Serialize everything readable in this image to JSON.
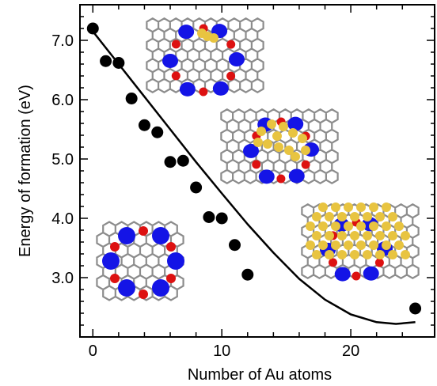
{
  "chart_data": {
    "type": "scatter",
    "title": "",
    "xlabel": "Number of Au atoms",
    "ylabel": "Energy of formation (eV)",
    "xlim": [
      -1,
      26.5
    ],
    "ylim": [
      2.0,
      7.6
    ],
    "xticks": [
      0,
      10,
      20
    ],
    "yticks": [
      3.0,
      4.0,
      5.0,
      6.0,
      7.0
    ],
    "x_tick_labels": [
      "0",
      "10",
      "20"
    ],
    "y_tick_labels": [
      "3.0",
      "4.0",
      "5.0",
      "6.0",
      "7.0"
    ],
    "grid": false,
    "legend": "none",
    "series": [
      {
        "type": "scatter",
        "x": [
          0,
          1,
          2,
          3,
          4,
          5,
          6,
          7,
          8,
          9,
          10,
          11,
          12,
          25
        ],
        "y": [
          7.2,
          6.65,
          6.62,
          6.02,
          5.57,
          5.45,
          4.95,
          4.97,
          4.52,
          4.02,
          4.0,
          3.55,
          3.05,
          2.48
        ],
        "color": "#000000"
      },
      {
        "type": "line",
        "x": [
          0,
          2,
          4,
          6,
          8,
          10,
          12,
          14,
          16,
          18,
          20,
          22,
          23.5,
          25
        ],
        "y": [
          7.15,
          6.6,
          6.05,
          5.5,
          4.95,
          4.42,
          3.9,
          3.42,
          2.98,
          2.63,
          2.38,
          2.25,
          2.22,
          2.25
        ],
        "color": "#000000"
      }
    ],
    "insets": [
      {
        "name": "pristine-vacancy-inset",
        "description": "graphene lattice with blue and red atom markers"
      },
      {
        "name": "au1-inset",
        "description": "graphene ring with one gold atom"
      },
      {
        "name": "au10-inset",
        "description": "graphene ring partially covered by gold atoms"
      },
      {
        "name": "au25-inset",
        "description": "graphene patch densely covered by gold atoms"
      }
    ],
    "colors": {
      "gold": "#e8c440",
      "blue": "#1414e6",
      "red": "#dd1111",
      "lattice": "#8c8c8c"
    }
  }
}
